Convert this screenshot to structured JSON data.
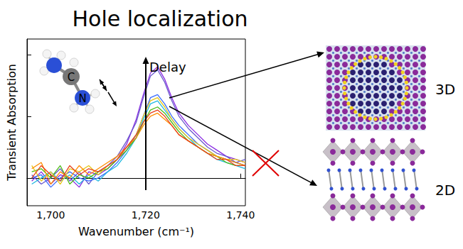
{
  "chart_data": {
    "type": "line",
    "title": "Hole localization",
    "x_label": "Wavenumber (cm⁻¹)",
    "y_label": "Transient Absorption",
    "annotations": [
      "Delay",
      "3D",
      "2D",
      "C",
      "N"
    ],
    "x": [
      1696,
      1698,
      1700,
      1702,
      1704,
      1706,
      1708,
      1710,
      1712,
      1714,
      1716,
      1718,
      1719.5,
      1721,
      1722.5,
      1724,
      1725.5,
      1727,
      1729,
      1731,
      1733,
      1735,
      1737,
      1739,
      1741
    ],
    "series": [
      {
        "color": "#8a2be2",
        "values": [
          -0.05,
          0.1,
          -0.1,
          0.05,
          0.0,
          -0.15,
          0.1,
          0.05,
          0.15,
          0.3,
          0.55,
          0.95,
          1.35,
          1.7,
          1.8,
          1.6,
          1.3,
          1.05,
          0.85,
          0.7,
          0.55,
          0.45,
          0.35,
          0.3,
          0.25
        ]
      },
      {
        "color": "#6a5acd",
        "values": [
          0.05,
          -0.1,
          0.0,
          0.15,
          -0.05,
          0.1,
          -0.1,
          0.1,
          0.2,
          0.35,
          0.6,
          0.9,
          1.3,
          1.65,
          1.75,
          1.55,
          1.25,
          1.0,
          0.8,
          0.65,
          0.5,
          0.4,
          0.35,
          0.25,
          0.3
        ]
      },
      {
        "color": "#3b6cff",
        "values": [
          0.0,
          0.05,
          -0.15,
          0.0,
          0.1,
          0.0,
          -0.05,
          0.0,
          0.1,
          0.25,
          0.45,
          0.7,
          1.0,
          1.3,
          1.35,
          1.2,
          1.0,
          0.85,
          0.7,
          0.55,
          0.45,
          0.35,
          0.3,
          0.25,
          0.2
        ]
      },
      {
        "color": "#22b8e0",
        "values": [
          -0.1,
          0.0,
          0.1,
          -0.05,
          0.05,
          -0.1,
          0.05,
          -0.05,
          0.1,
          0.2,
          0.4,
          0.65,
          0.95,
          1.2,
          1.25,
          1.1,
          0.95,
          0.8,
          0.65,
          0.5,
          0.4,
          0.3,
          0.25,
          0.2,
          0.15
        ]
      },
      {
        "color": "#4cbb17",
        "values": [
          0.1,
          0.15,
          0.0,
          0.2,
          -0.1,
          0.05,
          0.0,
          0.1,
          0.15,
          0.3,
          0.45,
          0.65,
          0.9,
          1.1,
          1.15,
          1.05,
          0.9,
          0.75,
          0.6,
          0.5,
          0.4,
          0.35,
          0.25,
          0.2,
          0.2
        ]
      },
      {
        "color": "#e6c619",
        "values": [
          0.2,
          -0.05,
          0.1,
          -0.1,
          0.15,
          0.1,
          0.2,
          0.05,
          0.2,
          0.3,
          0.5,
          0.7,
          1.0,
          1.25,
          1.3,
          1.15,
          0.95,
          0.8,
          0.65,
          0.55,
          0.45,
          0.35,
          0.3,
          0.3,
          0.25
        ]
      },
      {
        "color": "#ff8c00",
        "values": [
          0.15,
          0.25,
          -0.1,
          0.1,
          0.0,
          0.2,
          0.05,
          0.15,
          0.25,
          0.35,
          0.5,
          0.65,
          0.85,
          1.0,
          1.05,
          0.95,
          0.85,
          0.7,
          0.6,
          0.5,
          0.4,
          0.35,
          0.3,
          0.25,
          0.2
        ]
      },
      {
        "color": "#e8401c",
        "values": [
          0.0,
          0.2,
          0.05,
          -0.05,
          0.2,
          0.05,
          0.15,
          0.1,
          0.2,
          0.3,
          0.5,
          0.7,
          0.9,
          1.05,
          1.1,
          1.0,
          0.85,
          0.7,
          0.6,
          0.5,
          0.4,
          0.3,
          0.3,
          0.2,
          0.2
        ]
      }
    ],
    "xlim": [
      1695,
      1741
    ],
    "xticks": [
      1700,
      1720,
      1740
    ],
    "ylim": [
      -0.45,
      2.25
    ],
    "yticks": [
      0,
      1,
      2
    ],
    "tick_labels": "x",
    "grid": false
  }
}
